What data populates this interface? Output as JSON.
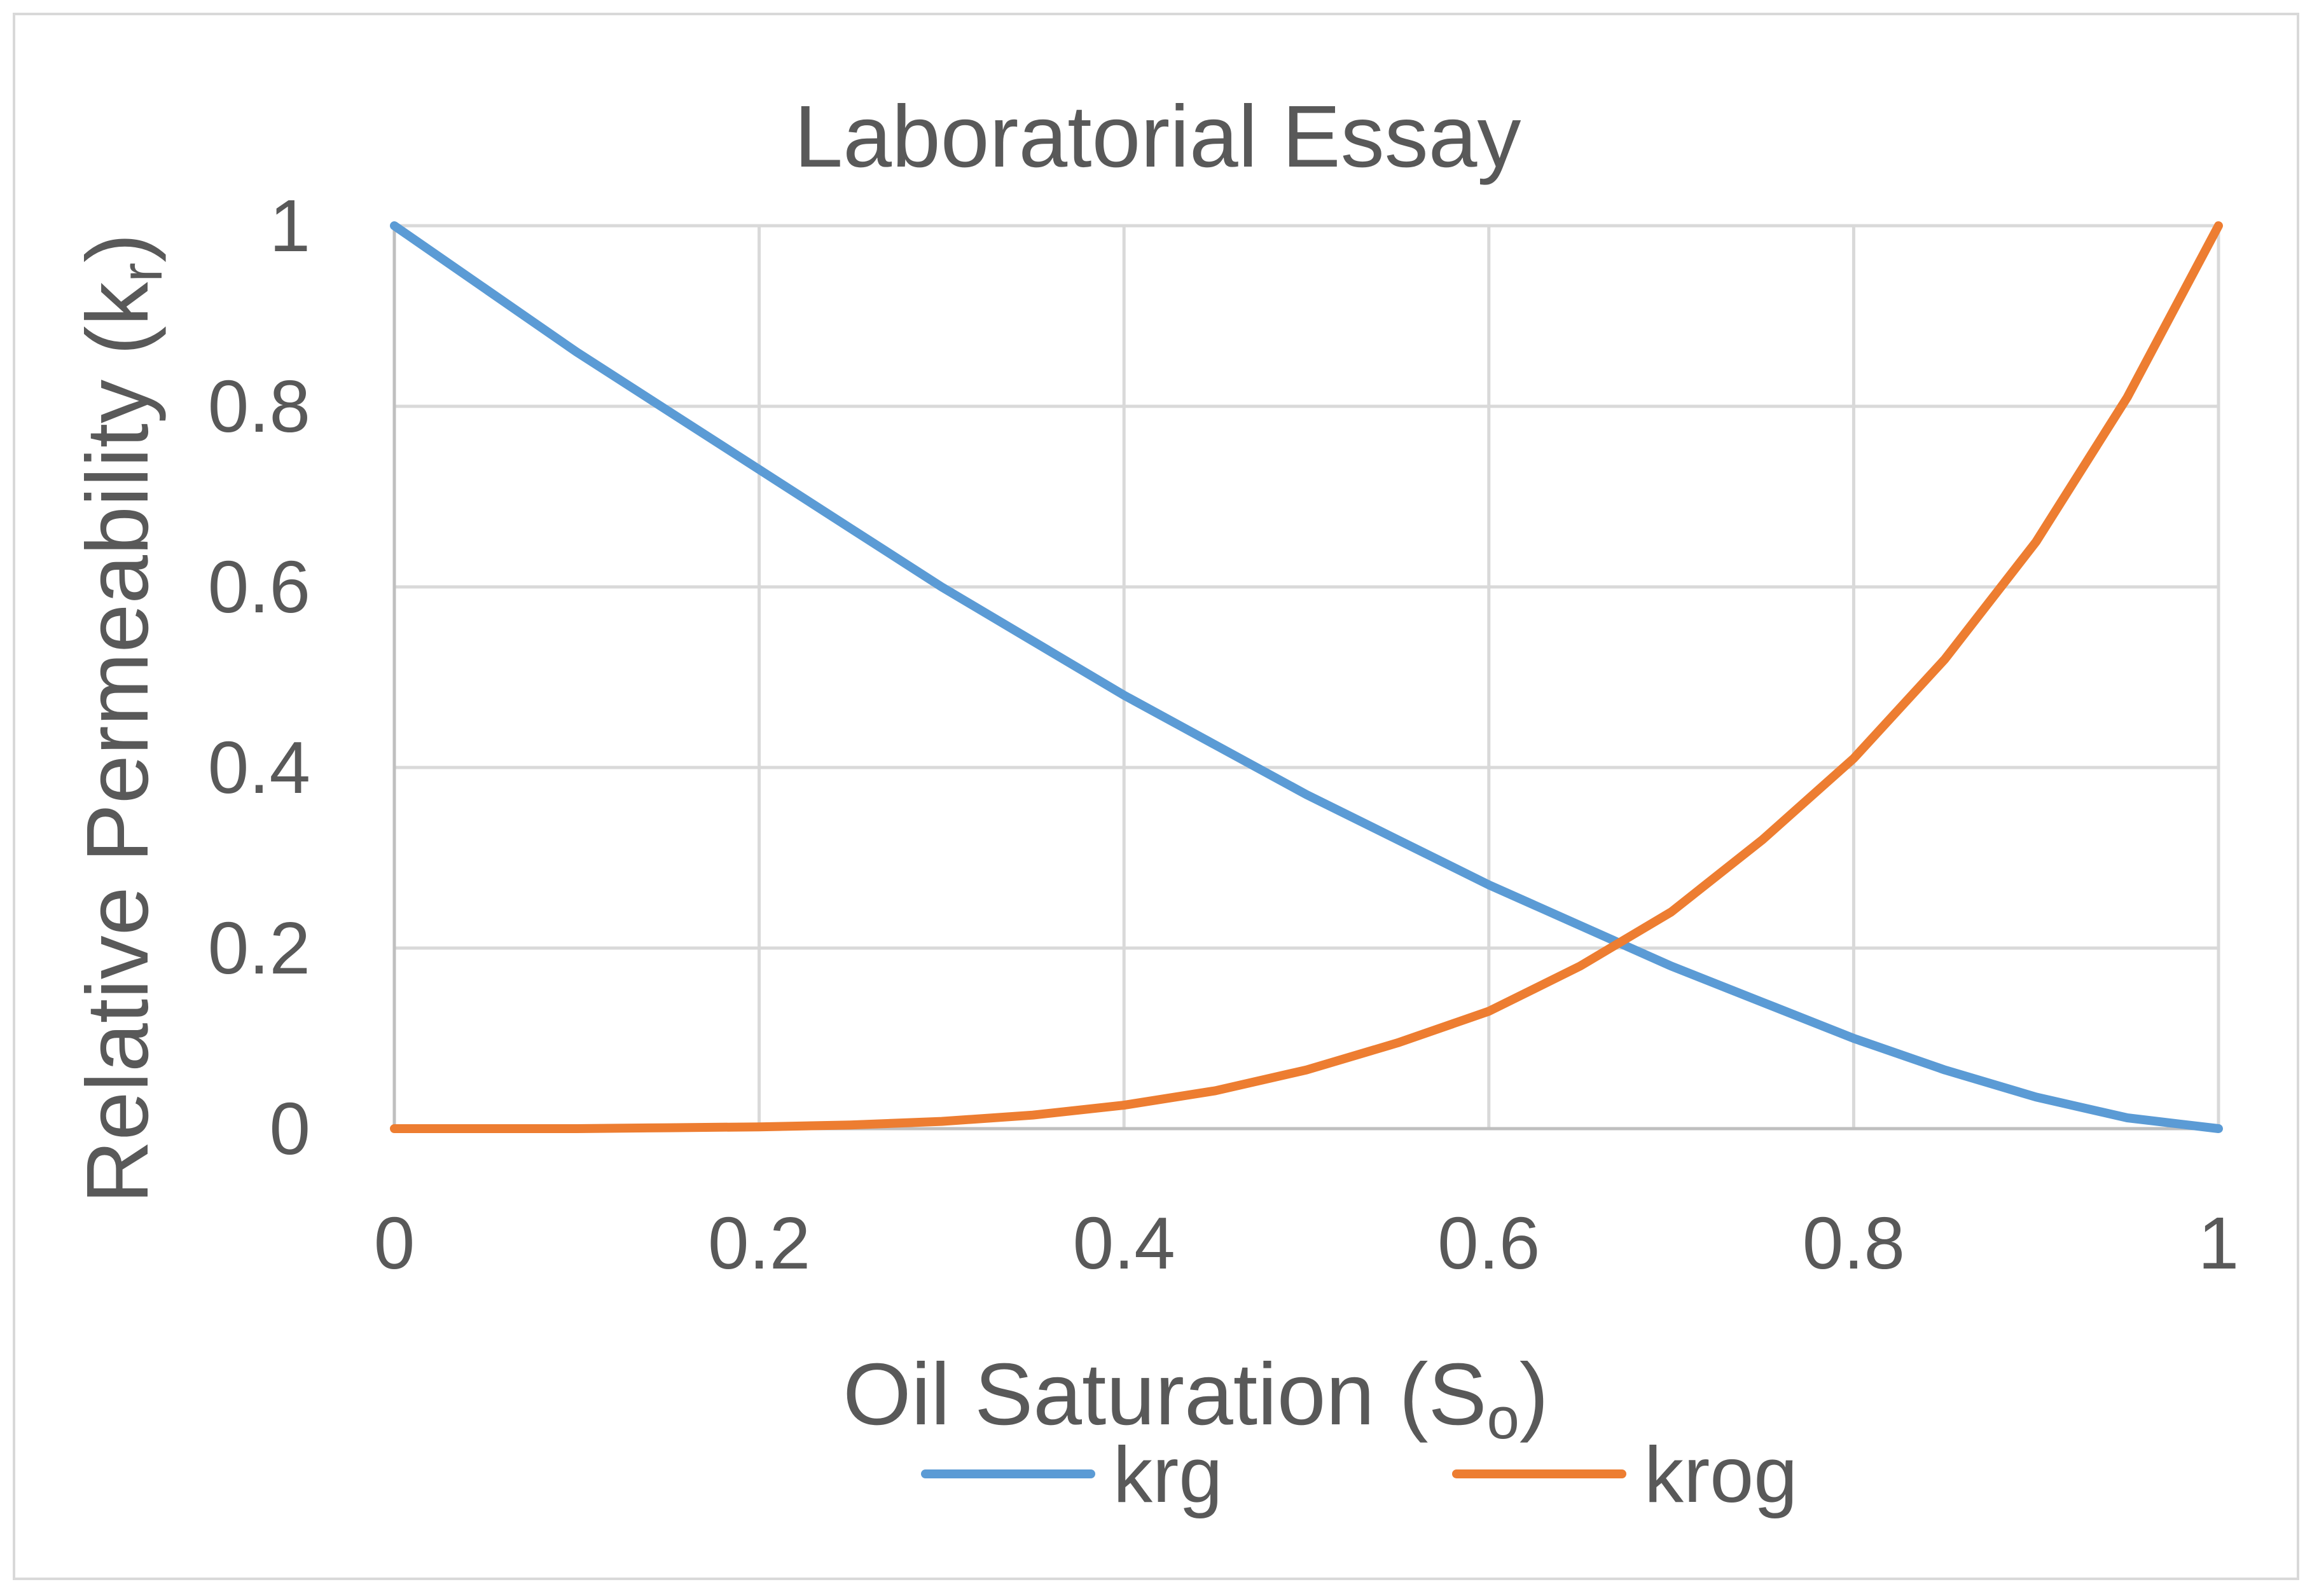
{
  "chart_data": {
    "type": "line",
    "title": "Laboratorial Essay",
    "xlabel": {
      "main": "Oil Saturation (S",
      "sub": "o",
      "end": ")"
    },
    "ylabel": {
      "main": "Relative Permeability (k",
      "sub": "r",
      "end": ")"
    },
    "xlim": [
      0,
      1
    ],
    "ylim": [
      0,
      1
    ],
    "x_ticks": [
      0,
      0.2,
      0.4,
      0.6,
      0.8,
      1
    ],
    "y_ticks": [
      0,
      0.2,
      0.4,
      0.6,
      0.8,
      1
    ],
    "x_tick_labels": [
      "0",
      "0.2",
      "0.4",
      "0.6",
      "0.8",
      "1"
    ],
    "y_tick_labels": [
      "0",
      "0.2",
      "0.4",
      "0.6",
      "0.8",
      "1"
    ],
    "grid": true,
    "legend_position": "bottom",
    "x": [
      0,
      0.05,
      0.1,
      0.15,
      0.2,
      0.25,
      0.3,
      0.35,
      0.4,
      0.45,
      0.5,
      0.55,
      0.6,
      0.65,
      0.7,
      0.75,
      0.8,
      0.85,
      0.9,
      0.95,
      1
    ],
    "series": [
      {
        "name": "krg",
        "color": "#5b9bd5",
        "values": [
          1.0,
          0.93,
          0.86,
          0.795,
          0.73,
          0.665,
          0.6,
          0.54,
          0.48,
          0.425,
          0.37,
          0.32,
          0.27,
          0.225,
          0.18,
          0.14,
          0.1,
          0.065,
          0.035,
          0.012,
          0.0
        ]
      },
      {
        "name": "krog",
        "color": "#ed7d31",
        "values": [
          0.0,
          0.0,
          0.0,
          0.001,
          0.002,
          0.004,
          0.008,
          0.015,
          0.026,
          0.042,
          0.065,
          0.095,
          0.13,
          0.18,
          0.24,
          0.32,
          0.41,
          0.52,
          0.65,
          0.81,
          1.0
        ]
      }
    ]
  }
}
